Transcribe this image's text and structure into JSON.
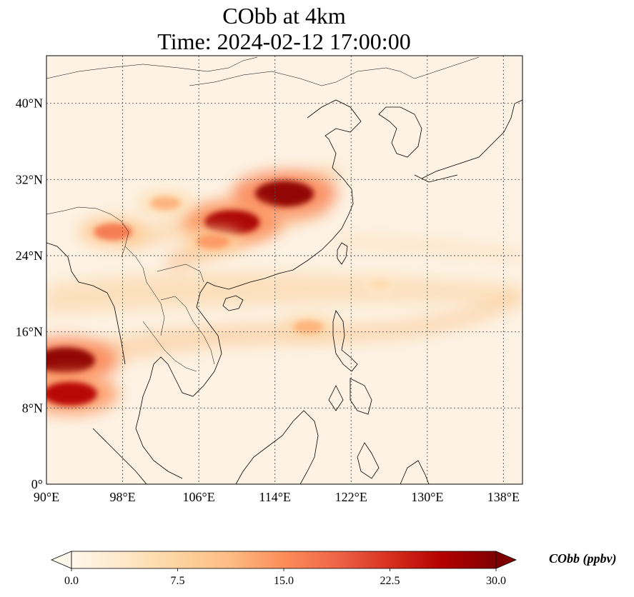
{
  "title": {
    "line1": "CObb at 4km",
    "line2": "Time: 2024-02-12 17:00:00"
  },
  "map": {
    "lon_range": [
      90,
      140
    ],
    "lat_range": [
      0,
      45
    ],
    "lon_ticks": [
      "90°E",
      "98°E",
      "106°E",
      "114°E",
      "122°E",
      "130°E",
      "138°E"
    ],
    "lat_ticks": [
      "0°",
      "8°N",
      "16°N",
      "24°N",
      "32°N",
      "40°N"
    ],
    "gridlines": true,
    "field_name": "CObb",
    "plumes": [
      {
        "lon": 115.0,
        "lat": 30.5,
        "value": 29
      },
      {
        "lon": 109.5,
        "lat": 27.5,
        "value": 27
      },
      {
        "lon": 107.5,
        "lat": 25.5,
        "value": 14
      },
      {
        "lon": 102.5,
        "lat": 29.5,
        "value": 12
      },
      {
        "lon": 97.0,
        "lat": 26.5,
        "value": 17
      },
      {
        "lon": 92.0,
        "lat": 13.0,
        "value": 29
      },
      {
        "lon": 92.5,
        "lat": 9.5,
        "value": 26
      },
      {
        "lon": 117.5,
        "lat": 16.5,
        "value": 12
      },
      {
        "lon": 125.0,
        "lat": 21.0,
        "value": 6
      }
    ]
  },
  "colorbar": {
    "title": "CObb (ppbv)",
    "min": 0.0,
    "max": 30.0,
    "ticks": [
      "0.0",
      "7.5",
      "15.0",
      "22.5",
      "30.0"
    ],
    "colors": [
      "#fff7ec",
      "#fee8c8",
      "#fdd49e",
      "#fdbb84",
      "#fc8d59",
      "#ef6548",
      "#d7301f",
      "#b30000",
      "#7f0000"
    ],
    "extend": "both"
  }
}
